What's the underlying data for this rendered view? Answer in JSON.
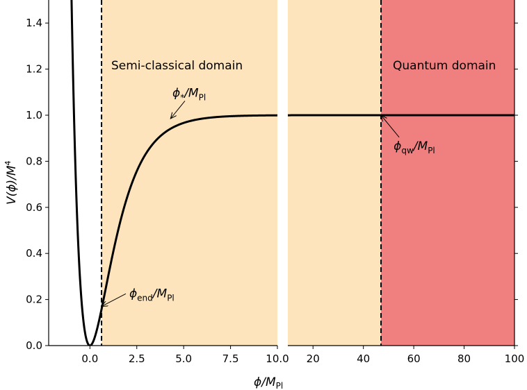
{
  "chart_data": {
    "type": "line",
    "ylabel": {
      "main": "V(ϕ)/M",
      "sup": "4"
    },
    "xlabel": {
      "main": "ϕ/M",
      "sub": "Pl"
    },
    "ylim": [
      0,
      1.5
    ],
    "y_ticks": [
      0.0,
      0.2,
      0.4,
      0.6,
      0.8,
      1.0,
      1.2,
      1.4
    ],
    "y_tick_labels": [
      "0.0",
      "0.2",
      "0.4",
      "0.6",
      "0.8",
      "1.0",
      "1.2",
      "1.4"
    ],
    "grid": false,
    "panels": [
      {
        "name": "left",
        "xlim": [
          -2.2,
          10.0
        ],
        "x_ticks": [
          0.0,
          2.5,
          5.0,
          7.5,
          10.0
        ],
        "x_tick_labels": [
          "0.0",
          "2.5",
          "5.0",
          "7.5",
          "10.0"
        ],
        "shaded_regions": [
          {
            "x0": 0.62,
            "x1": 10.0,
            "color": "#fde4bc",
            "label": "Semi-classical domain"
          }
        ],
        "vlines": [
          0.62
        ],
        "annotations": [
          {
            "text_main": "ϕ",
            "text_sub": "end",
            "text_tail": "/M",
            "text_tail_sub": "Pl",
            "point": [
              0.62,
              0.17
            ],
            "text_at": [
              2.1,
              0.21
            ]
          },
          {
            "text_main": "ϕ",
            "text_sub": "*",
            "text_tail": "/M",
            "text_tail_sub": "Pl",
            "point": [
              4.3,
              0.985
            ],
            "text_at": [
              4.4,
              1.08
            ]
          }
        ]
      },
      {
        "name": "right",
        "xlim": [
          10.0,
          100.0
        ],
        "x_ticks": [
          20,
          40,
          60,
          80,
          100
        ],
        "x_tick_labels": [
          "20",
          "40",
          "60",
          "80",
          "100"
        ],
        "shaded_regions": [
          {
            "x0": 10.0,
            "x1": 47.0,
            "color": "#fde4bc",
            "label": ""
          },
          {
            "x0": 47.0,
            "x1": 100.0,
            "color": "#f08080",
            "label": "Quantum domain"
          }
        ],
        "vlines": [
          47.0
        ],
        "annotations": [
          {
            "text_main": "ϕ",
            "text_sub": "qw",
            "text_tail": "/M",
            "text_tail_sub": "Pl",
            "point": [
              47.0,
              1.0
            ],
            "text_at": [
              52.0,
              0.85
            ]
          }
        ]
      }
    ],
    "series": [
      {
        "formula": "(1 - exp(-sqrt(2/3)*x))^2",
        "color": "#000000"
      }
    ],
    "colors": {
      "semiclassical": "#fde4bc",
      "quantum": "#f08080",
      "curve": "#000000"
    }
  }
}
